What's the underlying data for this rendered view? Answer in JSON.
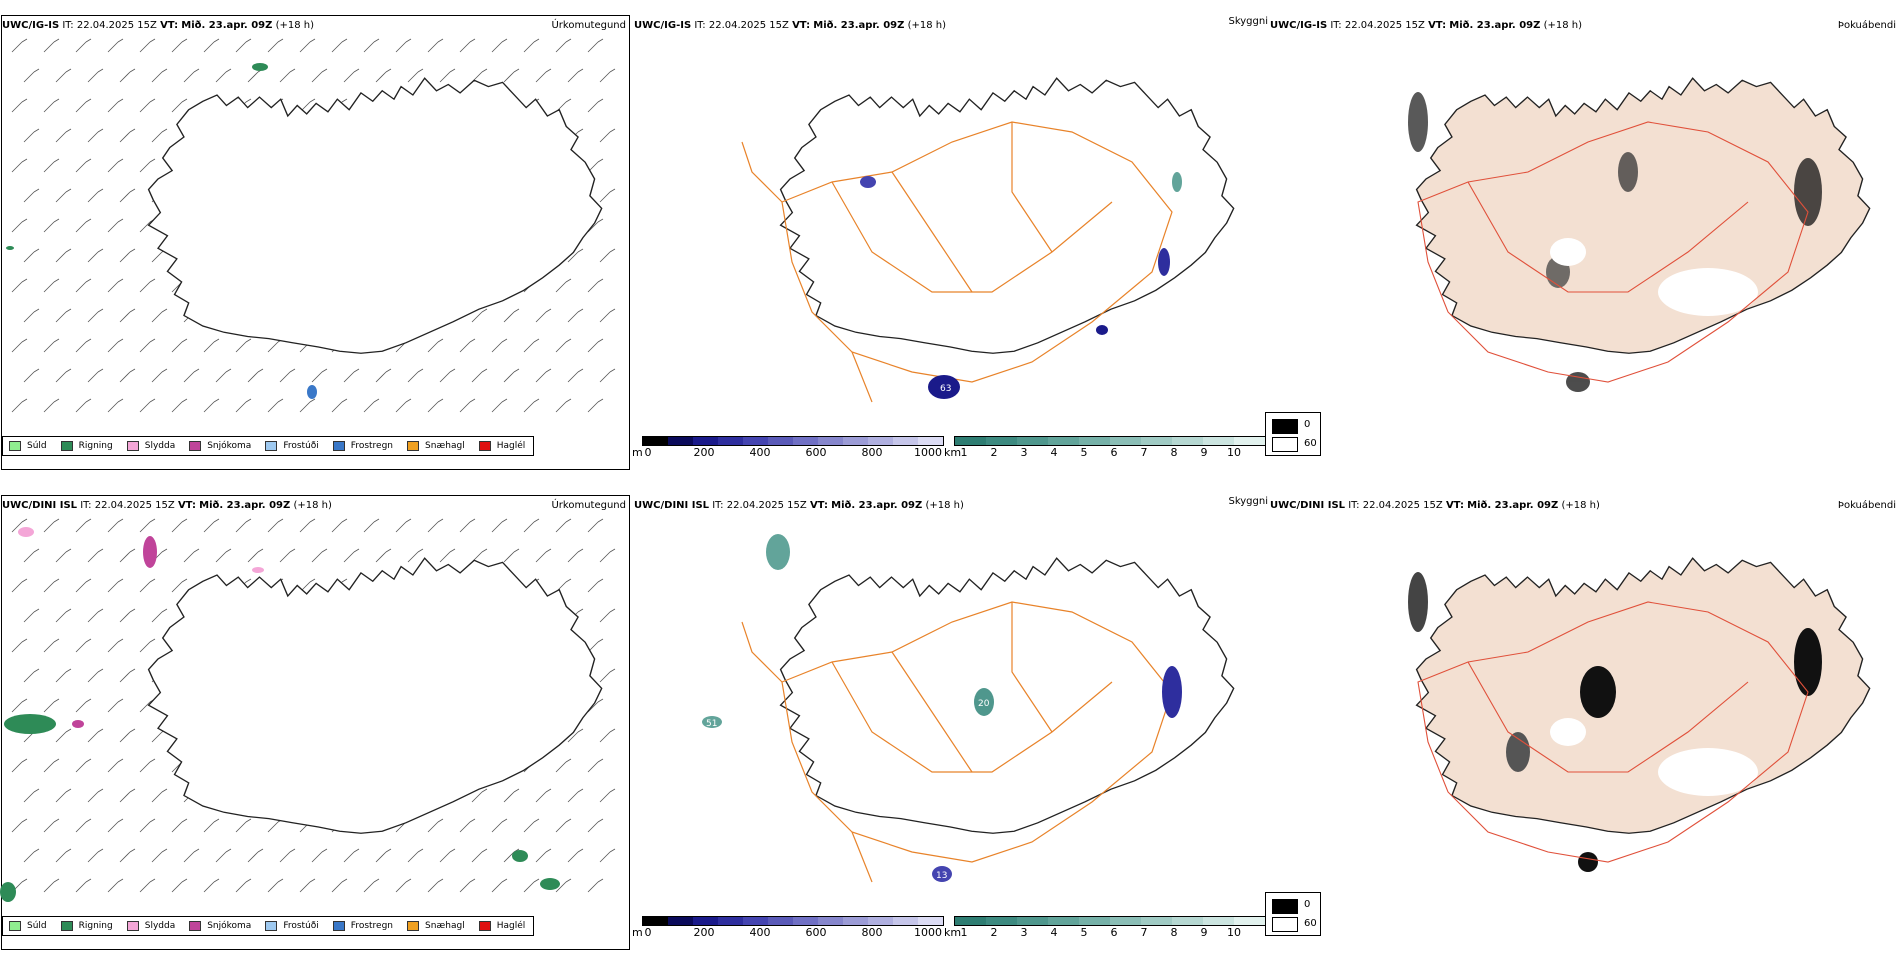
{
  "rows": [
    {
      "model_id": "UWC/IG-IS",
      "it_label": "IT:",
      "it_value": "22.04.2025 15Z",
      "vt_label": "VT:",
      "vt_value": "Mið. 23.apr. 09Z",
      "lead": "(+18 h)"
    },
    {
      "model_id": "UWC/DINI ISL",
      "it_label": "IT:",
      "it_value": "22.04.2025 15Z",
      "vt_label": "VT:",
      "vt_value": "Mið. 23.apr. 09Z",
      "lead": "(+18 h)"
    }
  ],
  "panel_titles": {
    "precip_type": "Úrkomutegund",
    "visibility": "Skyggni",
    "fog": "Þokuábendi"
  },
  "precip_legend": [
    {
      "label": "Súld",
      "color": "#90ee90"
    },
    {
      "label": "Rigning",
      "color": "#2e8b57"
    },
    {
      "label": "Slydda",
      "color": "#f4a6d7"
    },
    {
      "label": "Snjókoma",
      "color": "#c0449a"
    },
    {
      "label": "Frostúði",
      "color": "#9ec9f0"
    },
    {
      "label": "Frostregn",
      "color": "#3a78c8"
    },
    {
      "label": "Snæhagl",
      "color": "#f0a020"
    },
    {
      "label": "Haglél",
      "color": "#e01010"
    }
  ],
  "cloud_base_bar": {
    "unit": "m",
    "ticks": [
      "0",
      "200",
      "400",
      "600",
      "800",
      "1000"
    ],
    "colors": [
      "#000000",
      "#0a0a5a",
      "#1a1a8a",
      "#2e2e9e",
      "#4444b0",
      "#5a5ab8",
      "#7070c4",
      "#8686cc",
      "#9c9cd6",
      "#b0b0e0",
      "#c6c6ea",
      "#dcdcf4"
    ]
  },
  "visibility_bar": {
    "unit": "km",
    "ticks": [
      "1",
      "2",
      "3",
      "4",
      "5",
      "6",
      "7",
      "8",
      "9",
      "10"
    ],
    "colors": [
      "#2e7d72",
      "#3d8a80",
      "#4f978d",
      "#62a49a",
      "#76b1a8",
      "#8bbeb6",
      "#a0cbc4",
      "#b6d8d2",
      "#ccE5E0",
      "#e2f2ee"
    ]
  },
  "fog_legend": [
    {
      "value": "0",
      "color": "#000000"
    },
    {
      "value": "60",
      "color": "#ffffff"
    }
  ],
  "map_labels": {
    "row1": [
      "63"
    ],
    "row2": [
      "51",
      "20",
      "13"
    ]
  },
  "colors": {
    "roads": "#e8832a",
    "land_fog": "#f3e0d2",
    "roads_fog": "#e0503a",
    "rivers": "#7a8ef0"
  }
}
